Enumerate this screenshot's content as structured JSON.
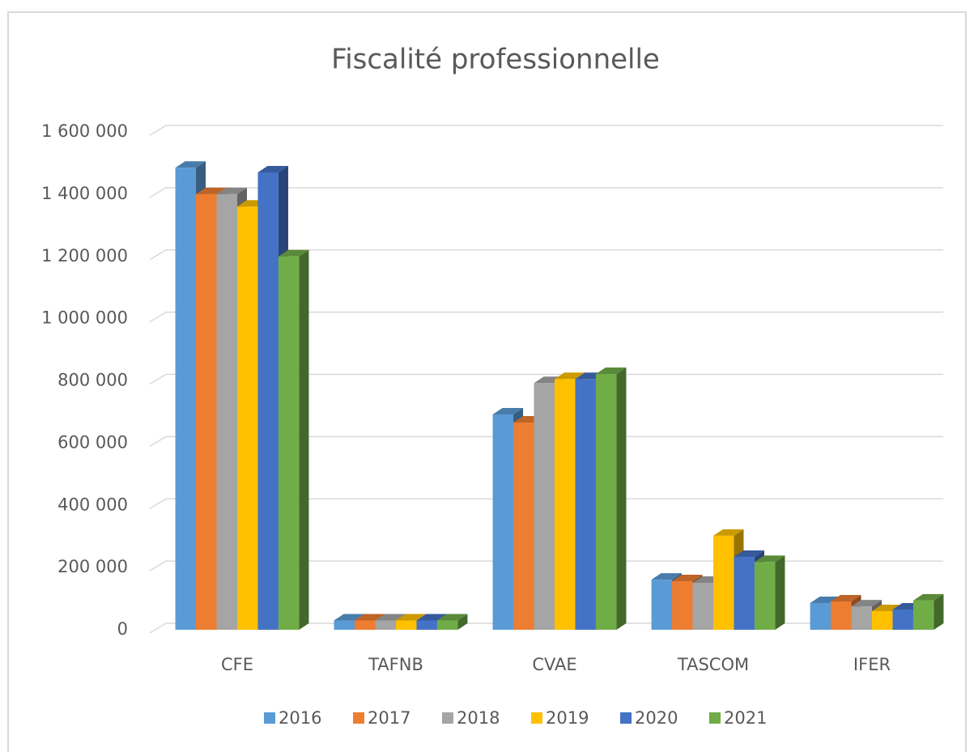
{
  "chart_data": {
    "type": "bar",
    "title": "Fiscalité professionnelle",
    "categories": [
      "CFE",
      "TAFNB",
      "CVAE",
      "TASCOM",
      "IFER"
    ],
    "series": [
      {
        "name": "2016",
        "color": "#5b9bd5",
        "values": [
          1485000,
          30000,
          692000,
          161000,
          86000
        ]
      },
      {
        "name": "2017",
        "color": "#ed7d31",
        "values": [
          1400000,
          30000,
          666000,
          156000,
          91000
        ]
      },
      {
        "name": "2018",
        "color": "#a5a5a5",
        "values": [
          1400000,
          30000,
          793000,
          151000,
          75000
        ]
      },
      {
        "name": "2019",
        "color": "#ffc000",
        "values": [
          1360000,
          30000,
          806000,
          302000,
          60000
        ]
      },
      {
        "name": "2020",
        "color": "#4472c4",
        "values": [
          1470000,
          30000,
          806000,
          234000,
          65000
        ]
      },
      {
        "name": "2021",
        "color": "#70ad47",
        "values": [
          1200000,
          30000,
          822000,
          218000,
          94000
        ]
      }
    ],
    "ylim": [
      0,
      1600000
    ],
    "yticks": [
      0,
      {
        "value": 200000,
        "label": "200 000"
      },
      {
        "value": 400000,
        "label": "400 000"
      },
      {
        "value": 600000,
        "label": "600 000"
      },
      {
        "value": 800000,
        "label": "800 000"
      },
      {
        "value": 1000000,
        "label": "1 000 000"
      },
      {
        "value": 1200000,
        "label": "1 200 000"
      },
      {
        "value": 1400000,
        "label": "1 400 000"
      },
      {
        "value": 1600000,
        "label": "1 600 000"
      }
    ],
    "grid": true,
    "legend": "bottom"
  }
}
